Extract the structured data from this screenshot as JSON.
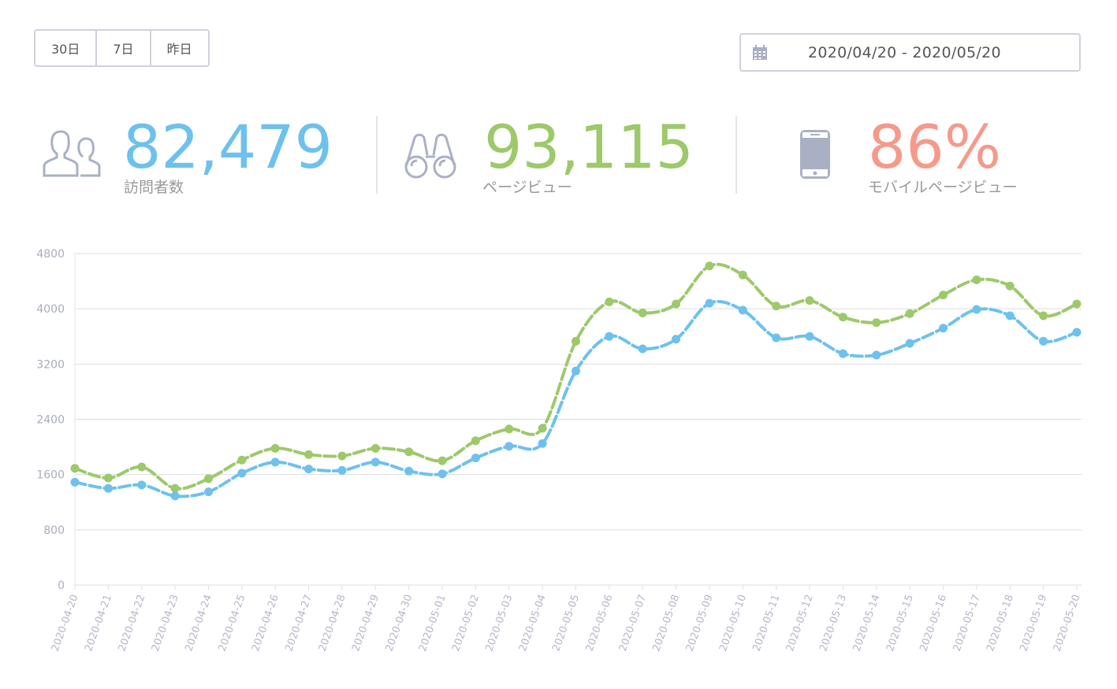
{
  "range_buttons": [
    {
      "label": "30日"
    },
    {
      "label": "7日"
    },
    {
      "label": "昨日"
    }
  ],
  "date_range": {
    "icon": "calendar-icon",
    "value": "2020/04/20 - 2020/05/20"
  },
  "stats": [
    {
      "icon": "users-icon",
      "value": "82,479",
      "label": "訪問者数",
      "color": "#6ec1ec"
    },
    {
      "icon": "binoculars-icon",
      "value": "93,115",
      "label": "ページビュー",
      "color": "#9dc96a"
    },
    {
      "icon": "smartphone-icon",
      "value": "86%",
      "label": "モバイルページビュー",
      "color": "#f59a8a"
    }
  ],
  "chart_data": {
    "type": "line",
    "x": [
      "2020-04-20",
      "2020-04-21",
      "2020-04-22",
      "2020-04-23",
      "2020-04-24",
      "2020-04-25",
      "2020-04-26",
      "2020-04-27",
      "2020-04-28",
      "2020-04-29",
      "2020-04-30",
      "2020-05-01",
      "2020-05-02",
      "2020-05-03",
      "2020-05-04",
      "2020-05-05",
      "2020-05-06",
      "2020-05-07",
      "2020-05-08",
      "2020-05-09",
      "2020-05-10",
      "2020-05-11",
      "2020-05-12",
      "2020-05-13",
      "2020-05-14",
      "2020-05-15",
      "2020-05-16",
      "2020-05-17",
      "2020-05-18",
      "2020-05-19",
      "2020-05-20"
    ],
    "yticks": [
      0,
      800,
      1600,
      2400,
      3200,
      4000,
      4800
    ],
    "ylim": [
      0,
      4800
    ],
    "grid": true,
    "series": [
      {
        "color": "#9dc96a",
        "values": [
          1690,
          1550,
          1710,
          1400,
          1540,
          1810,
          1980,
          1890,
          1870,
          1980,
          1930,
          1800,
          2090,
          2260,
          2270,
          3530,
          4100,
          3940,
          4070,
          4620,
          4490,
          4040,
          4120,
          3880,
          3800,
          3930,
          4200,
          4420,
          4330,
          3900,
          4070
        ]
      },
      {
        "color": "#6ec1ec",
        "values": [
          1490,
          1400,
          1450,
          1290,
          1350,
          1620,
          1780,
          1680,
          1660,
          1780,
          1650,
          1610,
          1840,
          2010,
          2050,
          3100,
          3600,
          3420,
          3560,
          4080,
          3980,
          3580,
          3600,
          3350,
          3330,
          3500,
          3720,
          3990,
          3900,
          3530,
          3660
        ]
      }
    ]
  }
}
